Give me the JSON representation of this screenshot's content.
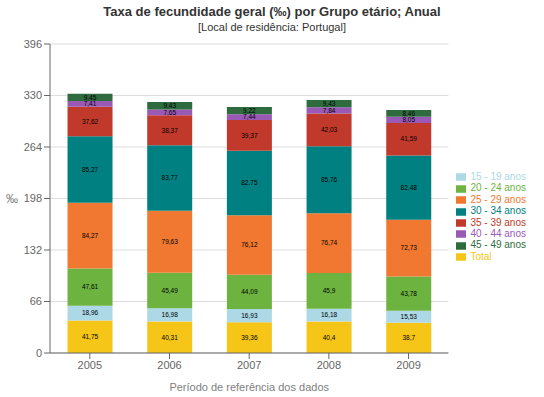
{
  "chart_data": {
    "type": "bar",
    "title": "Taxa de fecundidade geral (‰) por Grupo etário; Anual",
    "subtitle": "[Local de residência: Portugal]",
    "xlabel": "Período de referência dos dados",
    "ylabel": "‰",
    "categories": [
      "2005",
      "2006",
      "2007",
      "2008",
      "2009"
    ],
    "series": [
      {
        "name": "Total",
        "color": "#F5C518",
        "values": [
          41.75,
          40.31,
          39.36,
          40.4,
          38.7
        ],
        "value_labels": [
          "41,75",
          "40,31",
          "39,36",
          "40,4",
          "38,7"
        ]
      },
      {
        "name": "15 - 19 anos",
        "color": "#ADD8E6",
        "values": [
          18.96,
          16.98,
          16.93,
          16.18,
          15.53
        ],
        "value_labels": [
          "18,96",
          "16,98",
          "16,93",
          "16,18",
          "15,53"
        ]
      },
      {
        "name": "20 - 24 anos",
        "color": "#6DB33F",
        "values": [
          47.61,
          45.49,
          44.09,
          45.9,
          43.78
        ],
        "value_labels": [
          "47,61",
          "45,49",
          "44,09",
          "45,9",
          "43,78"
        ]
      },
      {
        "name": "25 - 29 anos",
        "color": "#F07830",
        "values": [
          84.27,
          79.63,
          76.12,
          76.74,
          72.73
        ],
        "value_labels": [
          "84,27",
          "79,63",
          "76,12",
          "76,74",
          "72,73"
        ]
      },
      {
        "name": "30 - 34 anos",
        "color": "#008080",
        "values": [
          85.27,
          83.77,
          82.75,
          85.76,
          82.48
        ],
        "value_labels": [
          "85,27",
          "83,77",
          "82,75",
          "85,76",
          "82,48"
        ]
      },
      {
        "name": "35 - 39 anos",
        "color": "#C0392B",
        "values": [
          37.62,
          38.37,
          39.37,
          42.03,
          41.59
        ],
        "value_labels": [
          "37,62",
          "38,37",
          "39,37",
          "42,03",
          "41,59"
        ]
      },
      {
        "name": "40 - 44 anos",
        "color": "#9B59B6",
        "values": [
          7.41,
          7.65,
          7.44,
          7.84,
          8.05
        ],
        "value_labels": [
          "7,41",
          "7,65",
          "7,44",
          "7,84",
          "8,05"
        ]
      },
      {
        "name": "45 - 49 anos",
        "color": "#2E6B3E",
        "values": [
          9.45,
          9.43,
          9.22,
          9.43,
          8.46
        ],
        "value_labels": [
          "9,45",
          "9,43",
          "9,22",
          "9,43",
          "8,46"
        ]
      }
    ],
    "ylim": [
      0,
      396
    ],
    "yticks": [
      0,
      66,
      132,
      198,
      264,
      330,
      396
    ],
    "stacked": true,
    "grid": true,
    "legend": "right",
    "data_labels": true
  }
}
